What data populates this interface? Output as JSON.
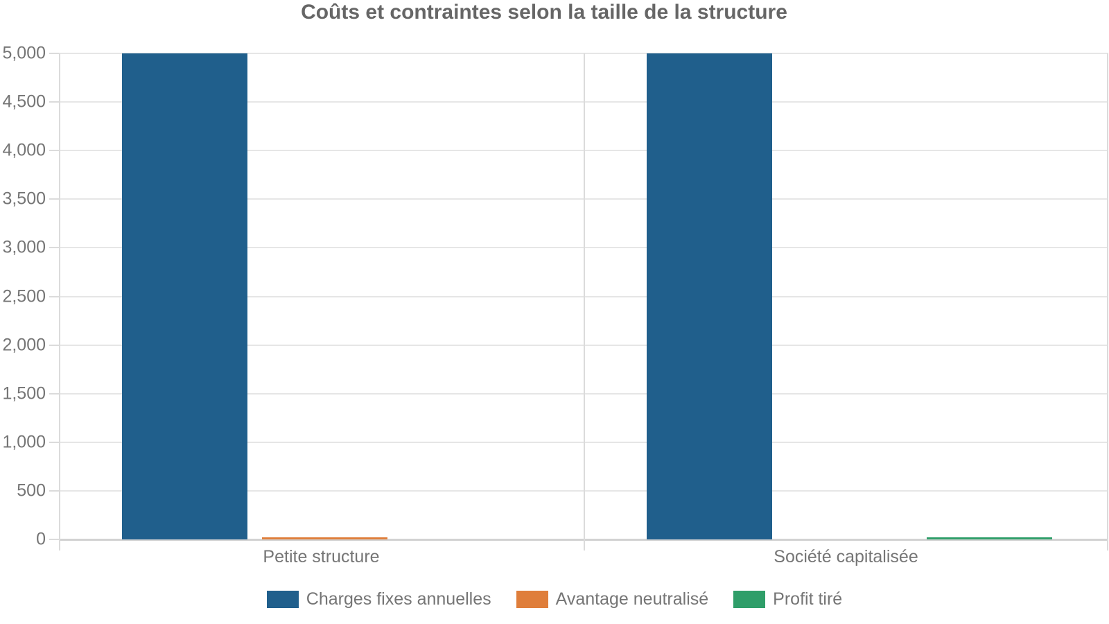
{
  "chart_data": {
    "type": "bar",
    "title": "Coûts et contraintes selon la taille de la structure",
    "categories": [
      "Petite structure",
      "Société capitalisée"
    ],
    "series": [
      {
        "name": "Charges fixes annuelles",
        "color": "#205F8C",
        "values": [
          5000,
          5000
        ]
      },
      {
        "name": "Avantage neutralisé",
        "color": "#DF7E3B",
        "values": [
          20,
          0
        ]
      },
      {
        "name": "Profit tiré",
        "color": "#2F9E69",
        "values": [
          0,
          20
        ]
      }
    ],
    "y_ticks": [
      "0",
      "500",
      "1,000",
      "1,500",
      "2,000",
      "2,500",
      "3,000",
      "3,500",
      "4,000",
      "4,500",
      "5,000"
    ],
    "ylim": [
      0,
      5000
    ],
    "xlabel": "",
    "ylabel": "",
    "grid": true,
    "legend_position": "bottom"
  },
  "style_colors": {
    "gridline": "#E6E6E6",
    "baseline": "#D2D2D2",
    "axis_line": "#DBDBDB",
    "tick_text": "#757575",
    "title_text": "#666666"
  }
}
